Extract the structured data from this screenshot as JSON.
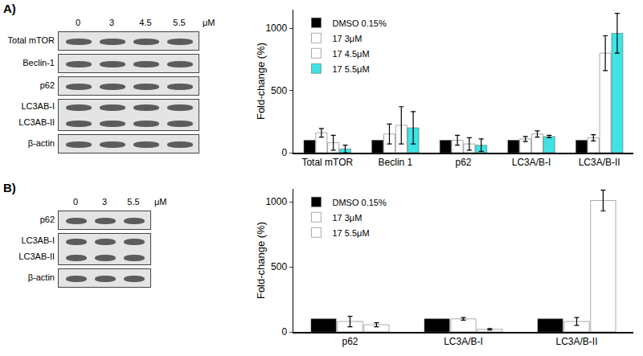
{
  "chart_data": [
    {
      "type": "bar",
      "y_label": "Fold-change (%)",
      "categories": [
        "Total mTOR",
        "Beclin 1",
        "p62",
        "LC3A/B-I",
        "LC3A/B-II"
      ],
      "series": [
        {
          "name": "DMSO 0.15%",
          "color": "#000000",
          "marker": "solid",
          "values": [
            100,
            100,
            100,
            100,
            100
          ]
        },
        {
          "name": "17 3μM",
          "color": "#2b3fc4",
          "marker": "striped",
          "values": [
            160,
            150,
            100,
            110,
            120
          ],
          "errors": [
            35,
            80,
            40,
            20,
            25
          ]
        },
        {
          "name": "17 4.5μM",
          "color": "#8fa7c6",
          "marker": "gridded",
          "values": [
            80,
            220,
            70,
            150,
            800
          ],
          "errors": [
            60,
            150,
            50,
            25,
            140
          ]
        },
        {
          "name": "17 5.5μM",
          "color": "#3fe3e3",
          "marker": "solid",
          "values": [
            30,
            200,
            60,
            130,
            960
          ],
          "errors": [
            30,
            130,
            50,
            10,
            160
          ]
        }
      ],
      "ylim": [
        0,
        1150
      ],
      "yticks": [
        0,
        500,
        1000
      ],
      "legend": "top left"
    },
    {
      "type": "bar",
      "y_label": "Fold-change (%)",
      "categories": [
        "p62",
        "LC3A/B-I",
        "LC3A/B-II"
      ],
      "series": [
        {
          "name": "DMSO 0.15%",
          "color": "#000000",
          "marker": "solid",
          "values": [
            100,
            100,
            100
          ]
        },
        {
          "name": "17 3μM",
          "color": "#3a8a5c",
          "marker": "striped",
          "values": [
            80,
            100,
            80
          ],
          "errors": [
            40,
            10,
            30
          ]
        },
        {
          "name": "17 5.5μM",
          "color": "#46c846",
          "marker": "gridded",
          "values": [
            55,
            20,
            1010
          ],
          "errors": [
            15,
            5,
            80
          ]
        }
      ],
      "ylim": [
        0,
        1100
      ],
      "yticks": [
        0,
        500,
        1000
      ],
      "legend": "top left"
    }
  ],
  "blots": [
    {
      "panel": "A)",
      "lanes": [
        "0",
        "3",
        "4.5",
        "5.5"
      ],
      "unit": "μM",
      "rows": [
        [
          "Total mTOR"
        ],
        [
          "Beclin-1"
        ],
        [
          "p62"
        ],
        [
          "LC3AB-I",
          "LC3AB-II"
        ],
        [
          "β-actin"
        ]
      ]
    },
    {
      "panel": "B)",
      "lanes": [
        "0",
        "3",
        "5.5"
      ],
      "unit": "μM",
      "rows": [
        [
          "p62"
        ],
        [
          "LC3AB-I",
          "LC3AB-II"
        ],
        [
          "β-actin"
        ]
      ]
    }
  ]
}
